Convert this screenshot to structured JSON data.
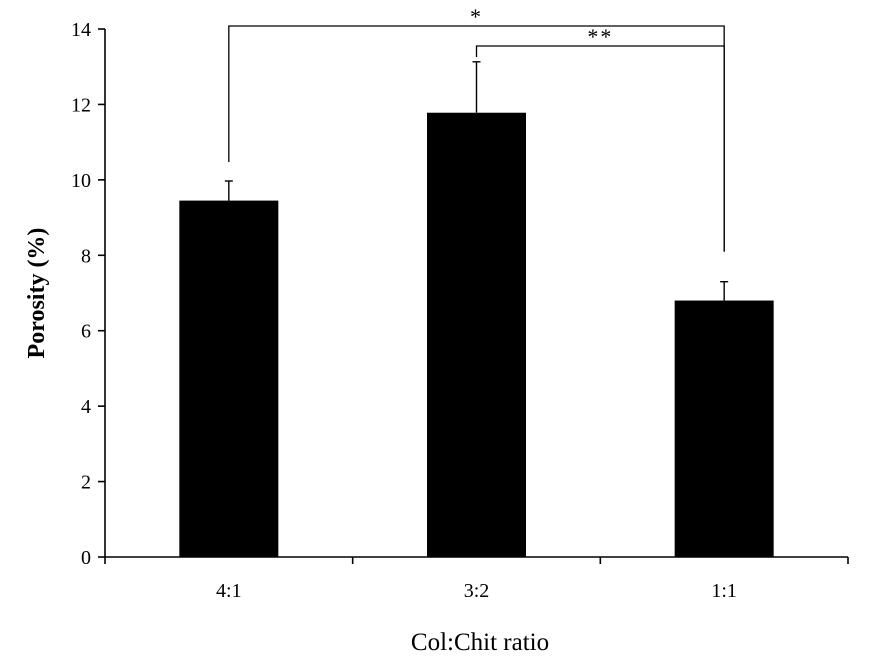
{
  "chart_data": {
    "type": "bar",
    "xlabel": "Col:Chit ratio",
    "ylabel": "Porosity (%)",
    "ylim": [
      0,
      14
    ],
    "yticks": [
      0,
      2,
      4,
      6,
      8,
      10,
      12,
      14
    ],
    "categories": [
      "4:1",
      "3:2",
      "1:1"
    ],
    "values": [
      9.45,
      11.78,
      6.8
    ],
    "errors": [
      0.52,
      1.35,
      0.5
    ],
    "bar_color": "#000000",
    "grid": false,
    "significance": [
      {
        "from": 0,
        "to": 2,
        "label": "*"
      },
      {
        "from": 1,
        "to": 2,
        "label": "**"
      }
    ]
  }
}
